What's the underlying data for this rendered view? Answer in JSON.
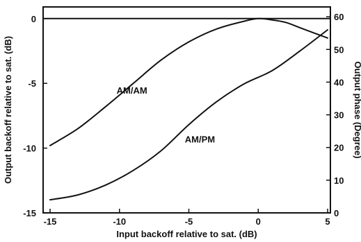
{
  "chart_data": {
    "type": "line",
    "title": "",
    "xlabel": "Input backoff relative to sat. (dB)",
    "ylabel": "Output backoff relative to sat. (dB)",
    "y2label": "Output phase (Degree)",
    "xlim": [
      -15.5,
      5.2
    ],
    "ylim": [
      -15,
      0.9
    ],
    "y2lim": [
      0,
      63
    ],
    "xticks": [
      -15,
      -10,
      -5,
      0,
      5
    ],
    "xtick_labels": [
      "-15",
      "-10",
      "-5",
      "0",
      "5"
    ],
    "yticks": [
      0,
      -5,
      -10,
      -15
    ],
    "ytick_labels": [
      "0",
      "-5",
      "-10",
      "-15"
    ],
    "y2ticks": [
      0,
      10,
      20,
      30,
      40,
      50,
      60
    ],
    "y2tick_labels": [
      "0",
      "10",
      "20",
      "30",
      "40",
      "50",
      "60"
    ],
    "reference_line_y": 0,
    "grid": false,
    "series": [
      {
        "name": "AM/AM",
        "axis": "left",
        "x": [
          -15,
          -13,
          -11,
          -9,
          -7,
          -5,
          -3,
          -1,
          0,
          1,
          2,
          3,
          4,
          5
        ],
        "y": [
          -9.8,
          -8.5,
          -6.8,
          -5.0,
          -3.2,
          -1.8,
          -0.8,
          -0.2,
          0.0,
          -0.1,
          -0.3,
          -0.7,
          -1.1,
          -1.5
        ]
      },
      {
        "name": "AM/PM",
        "axis": "right",
        "x": [
          -15,
          -13,
          -11,
          -9,
          -7,
          -5,
          -3,
          -1,
          1,
          3,
          5
        ],
        "y": [
          4.0,
          5.5,
          8.5,
          13.0,
          19.0,
          27.0,
          34.0,
          39.5,
          43.5,
          49.5,
          56.0
        ]
      }
    ],
    "annotations": [
      {
        "text": "AM/AM",
        "x": -9.1,
        "y": -5.8,
        "axis": "left"
      },
      {
        "text": "AM/PM",
        "x": -4.2,
        "y": 21.5,
        "axis": "right"
      }
    ]
  }
}
